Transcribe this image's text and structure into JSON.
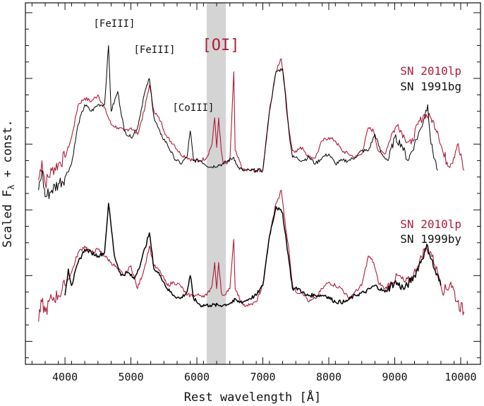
{
  "chart_data": {
    "type": "line",
    "title": "",
    "xlabel": "Rest wavelength [Å]",
    "ylabel_main": "Scaled F",
    "ylabel_sub": "λ",
    "ylabel_tail": " + const.",
    "xlim": [
      3400,
      10300
    ],
    "xticks": [
      "4000",
      "5000",
      "6000",
      "7000",
      "8000",
      "9000",
      "10000"
    ],
    "grid": false,
    "colors": {
      "sn2010lp": "#b01c3a",
      "comparison": "#000000",
      "shade": "#d4d4d4"
    },
    "shaded_region": {
      "label": "[OI]",
      "x_range": [
        6150,
        6440
      ]
    },
    "annotations": [
      {
        "text": "[FeIII]",
        "x": 4650
      },
      {
        "text": "[FeIII]",
        "x": 5270
      },
      {
        "text": "[CoIII]",
        "x": 5900
      }
    ],
    "panels": [
      {
        "name": "top",
        "legend": [
          "SN 2010lp",
          "SN 1991bg"
        ],
        "legend_position": "right",
        "series": [
          {
            "name": "SN 2010lp",
            "color": "#b01c3a",
            "x": [
              3600,
              3650,
              3700,
              3800,
              3900,
              4000,
              4100,
              4200,
              4300,
              4400,
              4500,
              4600,
              4700,
              4800,
              4900,
              5000,
              5100,
              5200,
              5280,
              5350,
              5450,
              5550,
              5650,
              5750,
              5850,
              5950,
              6050,
              6150,
              6230,
              6270,
              6300,
              6330,
              6370,
              6400,
              6450,
              6500,
              6560,
              6580,
              6620,
              6700,
              6800,
              6900,
              7000,
              7100,
              7200,
              7280,
              7320,
              7400,
              7450,
              7500,
              7600,
              7700,
              7800,
              7900,
              8000,
              8100,
              8200,
              8300,
              8400,
              8500,
              8600,
              8680,
              8750,
              8850,
              8950,
              9050,
              9150,
              9250,
              9350,
              9450,
              9550,
              9650,
              9750,
              9850,
              9950,
              10050
            ],
            "y": [
              0.9,
              1.5,
              0.8,
              1.2,
              1.4,
              1.6,
              2.2,
              3.2,
              3.4,
              3.3,
              3.5,
              3.1,
              2.6,
              2.5,
              2.4,
              2.5,
              2.3,
              3.0,
              3.8,
              3.0,
              2.7,
              2.2,
              2.0,
              1.7,
              1.6,
              1.5,
              1.5,
              1.6,
              2.0,
              2.8,
              1.9,
              2.8,
              1.8,
              1.4,
              1.4,
              1.5,
              4.2,
              1.8,
              1.6,
              1.2,
              1.2,
              1.2,
              1.2,
              3.0,
              4.2,
              4.6,
              4.0,
              2.4,
              1.8,
              1.8,
              1.9,
              1.6,
              1.6,
              2.1,
              2.2,
              2.1,
              1.8,
              1.7,
              1.6,
              1.7,
              2.5,
              2.4,
              1.8,
              1.7,
              2.3,
              2.6,
              2.2,
              2.0,
              2.6,
              2.9,
              2.8,
              2.4,
              1.6,
              1.4,
              2.0,
              1.2
            ]
          },
          {
            "name": "SN 1991bg",
            "color": "#000000",
            "x": [
              3600,
              3650,
              3700,
              3800,
              3900,
              4000,
              4100,
              4200,
              4300,
              4400,
              4500,
              4600,
              4660,
              4700,
              4800,
              4900,
              5000,
              5100,
              5200,
              5280,
              5350,
              5450,
              5550,
              5650,
              5750,
              5850,
              5900,
              5950,
              6050,
              6200,
              6400,
              6560,
              6580,
              6620,
              6700,
              6800,
              6900,
              7000,
              7100,
              7200,
              7300,
              7400,
              7450,
              7500,
              7600,
              7700,
              7800,
              7900,
              8000,
              8100,
              8200,
              8300,
              8400,
              8500,
              8600,
              8700,
              8800,
              8900,
              9000,
              9100,
              9200,
              9300,
              9400,
              9500,
              9550,
              9650
            ],
            "y": [
              0.6,
              1.2,
              0.4,
              0.6,
              0.8,
              1.0,
              1.4,
              2.6,
              3.2,
              3.0,
              3.2,
              3.2,
              5.0,
              3.0,
              3.6,
              2.4,
              2.2,
              2.5,
              3.5,
              4.0,
              2.8,
              2.3,
              2.0,
              1.6,
              1.4,
              1.6,
              2.4,
              1.5,
              1.5,
              1.3,
              1.4,
              1.6,
              1.5,
              1.3,
              1.2,
              1.2,
              1.2,
              1.2,
              3.0,
              4.2,
              4.3,
              2.3,
              1.6,
              1.6,
              1.5,
              1.6,
              1.4,
              1.6,
              1.7,
              1.4,
              1.5,
              1.5,
              1.6,
              1.8,
              1.8,
              2.3,
              1.7,
              1.5,
              2.2,
              2.0,
              1.5,
              2.0,
              2.5,
              3.2,
              2.0,
              1.2
            ]
          }
        ]
      },
      {
        "name": "bottom",
        "legend": [
          "SN 2010lp",
          "SN 1999by"
        ],
        "legend_position": "right",
        "series": [
          {
            "name": "SN 2010lp",
            "color": "#b01c3a",
            "x": [
              3600,
              3650,
              3700,
              3800,
              3900,
              4000,
              4100,
              4200,
              4300,
              4400,
              4500,
              4600,
              4700,
              4800,
              4900,
              5000,
              5100,
              5200,
              5280,
              5350,
              5450,
              5550,
              5650,
              5750,
              5850,
              5950,
              6050,
              6150,
              6230,
              6270,
              6300,
              6330,
              6370,
              6400,
              6450,
              6500,
              6560,
              6580,
              6620,
              6700,
              6800,
              6900,
              7000,
              7100,
              7200,
              7280,
              7320,
              7400,
              7450,
              7500,
              7600,
              7700,
              7800,
              7900,
              8000,
              8100,
              8200,
              8300,
              8400,
              8500,
              8600,
              8680,
              8750,
              8850,
              8950,
              9050,
              9150,
              9250,
              9350,
              9450,
              9550,
              9650,
              9750,
              9850,
              9950,
              10050
            ],
            "y": [
              -3.4,
              -2.8,
              -3.1,
              -2.7,
              -2.6,
              -2.3,
              -1.9,
              -1.3,
              -1.1,
              -1.3,
              -1.2,
              -1.4,
              -1.6,
              -1.8,
              -2.0,
              -1.7,
              -2.4,
              -1.8,
              -1.1,
              -1.7,
              -1.9,
              -2.3,
              -2.2,
              -2.3,
              -2.6,
              -2.6,
              -2.6,
              -2.6,
              -2.3,
              -1.6,
              -2.4,
              -1.6,
              -2.5,
              -2.6,
              -2.5,
              -2.4,
              -0.9,
              -2.4,
              -2.6,
              -2.9,
              -2.9,
              -2.8,
              -2.3,
              -0.8,
              0.2,
              0.6,
              -0.1,
              -1.3,
              -2.3,
              -2.5,
              -2.5,
              -2.8,
              -2.7,
              -2.4,
              -2.2,
              -2.3,
              -2.4,
              -2.7,
              -2.5,
              -2.3,
              -1.4,
              -1.6,
              -2.2,
              -2.4,
              -2.2,
              -2.0,
              -2.2,
              -2.1,
              -1.7,
              -1.2,
              -1.3,
              -1.9,
              -2.5,
              -2.2,
              -2.8,
              -3.1
            ]
          },
          {
            "name": "SN 1999by",
            "color": "#000000",
            "x": [
              4000,
              4050,
              4100,
              4200,
              4300,
              4400,
              4500,
              4600,
              4660,
              4750,
              4850,
              4950,
              5050,
              5150,
              5280,
              5350,
              5450,
              5550,
              5650,
              5750,
              5850,
              5900,
              5950,
              6050,
              6200,
              6400,
              6560,
              6580,
              6620,
              6700,
              6800,
              6900,
              7000,
              7100,
              7200,
              7300,
              7400,
              7450,
              7550,
              7650,
              7800,
              7950,
              8100,
              8250,
              8400,
              8550,
              8700,
              8850,
              9000,
              9150,
              9300,
              9450,
              9500,
              9600,
              9700
            ],
            "y": [
              -2.6,
              -1.8,
              -2.3,
              -1.6,
              -1.2,
              -1.3,
              -1.4,
              -1.3,
              0.2,
              -1.4,
              -2.0,
              -1.9,
              -2.1,
              -1.6,
              -0.7,
              -1.8,
              -2.0,
              -2.4,
              -2.6,
              -2.7,
              -2.5,
              -2.0,
              -2.7,
              -2.9,
              -2.9,
              -2.9,
              -2.8,
              -2.7,
              -2.8,
              -2.8,
              -2.7,
              -2.6,
              -2.3,
              -0.8,
              0.1,
              -0.1,
              -1.6,
              -2.4,
              -2.4,
              -2.6,
              -2.6,
              -2.6,
              -2.8,
              -2.8,
              -2.6,
              -2.5,
              -2.3,
              -2.5,
              -2.2,
              -2.4,
              -2.0,
              -1.3,
              -1.1,
              -1.8,
              -2.3
            ]
          }
        ]
      }
    ]
  }
}
